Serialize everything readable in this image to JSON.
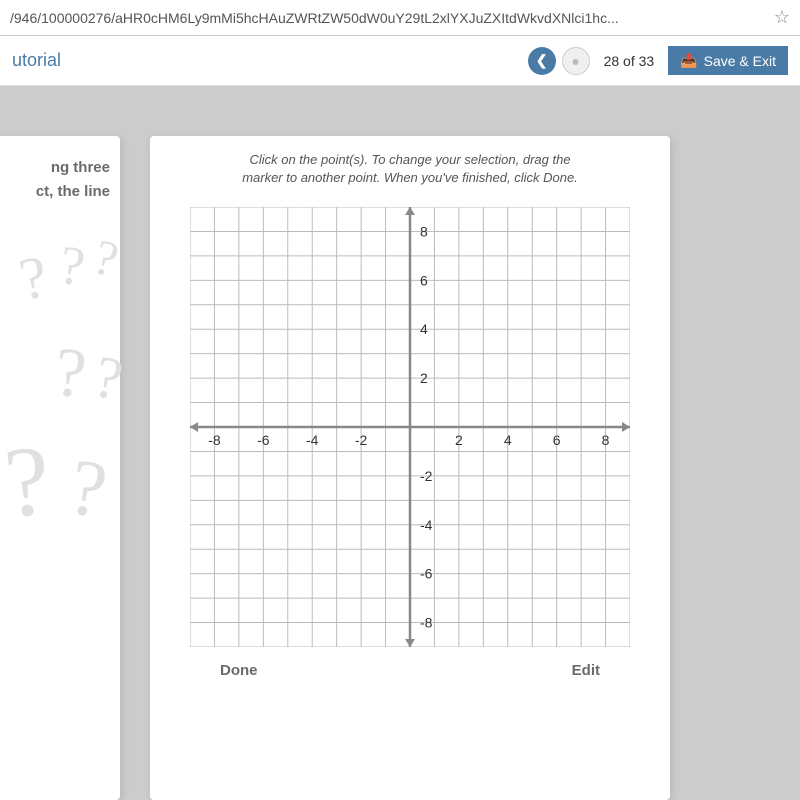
{
  "url": "/946/100000276/aHR0cHM6Ly9mMi5hcHAuZWRtZW50dW0uY29tL2xlYXJuZXItdWkvdXNlci1hc...",
  "app_title": "utorial",
  "nav": {
    "page_counter": "28 of 33",
    "save_exit": "Save & Exit"
  },
  "left_panel": {
    "line1": "ng three",
    "line2": "ct, the line"
  },
  "instructions": {
    "line1": "Click on the point(s). To change your selection, drag the",
    "line2": "marker to another point. When you've finished, click Done."
  },
  "grid": {
    "xmin": -9,
    "xmax": 9,
    "ymin": -9,
    "ymax": 9,
    "tick_step": 2,
    "x_labels": [
      -8,
      -6,
      -4,
      -2,
      2,
      4,
      6,
      8
    ],
    "y_labels": [
      8,
      6,
      4,
      2,
      -2,
      -4,
      -6,
      -8
    ],
    "grid_color": "#bbbbbb",
    "axis_color": "#888888",
    "bg_color": "#ffffff",
    "label_color": "#333333",
    "label_fontsize": 14
  },
  "bottom": {
    "done": "Done",
    "edit": "Edit"
  }
}
